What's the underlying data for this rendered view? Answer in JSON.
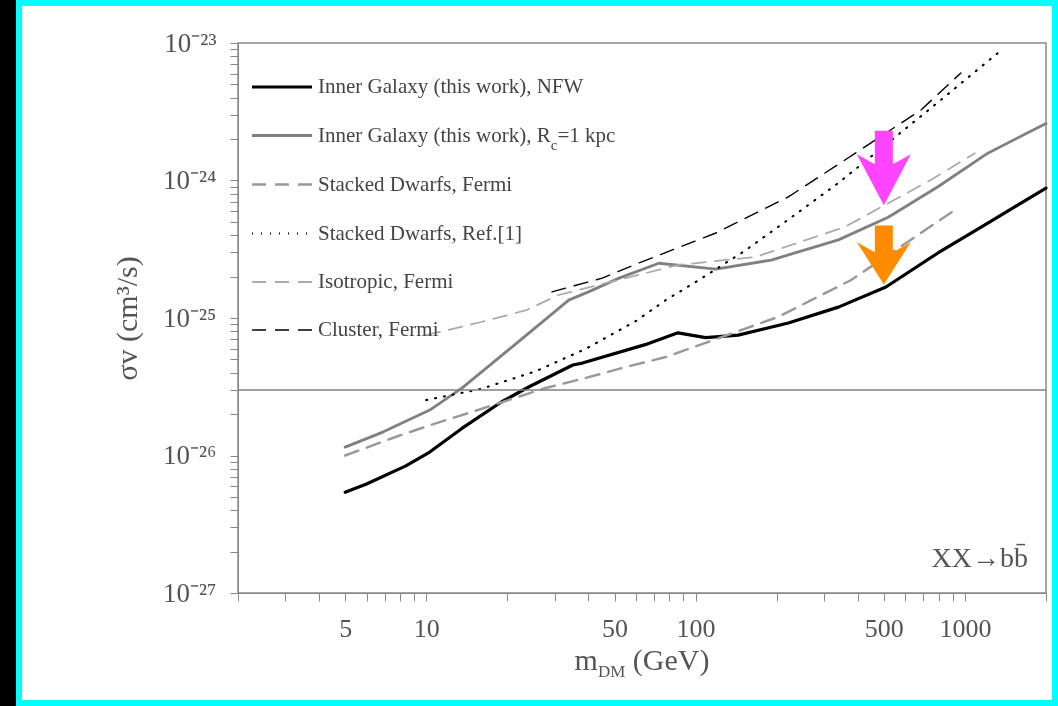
{
  "chart_data": {
    "type": "line",
    "xlabel": "m$_{DM}$ (GeV)",
    "ylabel": "σv (cm³/s)",
    "log": "xy",
    "grid": false,
    "legend": "top left",
    "marker": "none",
    "xlim": [
      2,
      2000
    ],
    "ylim": [
      1e-27,
      1e-23
    ],
    "xticks": [
      {
        "value": 2,
        "label": null
      },
      {
        "value": 3,
        "label": null
      },
      {
        "value": 4,
        "label": null
      },
      5,
      {
        "value": 6,
        "label": null
      },
      {
        "value": 7,
        "label": null
      },
      {
        "value": 8,
        "label": null
      },
      {
        "value": 9,
        "label": null
      },
      10,
      {
        "value": 20,
        "label": null
      },
      {
        "value": 30,
        "label": null
      },
      {
        "value": 40,
        "label": null
      },
      50,
      {
        "value": 60,
        "label": null
      },
      {
        "value": 70,
        "label": null
      },
      {
        "value": 80,
        "label": null
      },
      {
        "value": 90,
        "label": null
      },
      100,
      {
        "value": 200,
        "label": null
      },
      {
        "value": 300,
        "label": null
      },
      {
        "value": 400,
        "label": null
      },
      500,
      {
        "value": 600,
        "label": null
      },
      {
        "value": 700,
        "label": null
      },
      {
        "value": 800,
        "label": null
      },
      {
        "value": 900,
        "label": null
      },
      1000,
      {
        "value": 2000,
        "label": null
      }
    ],
    "yticks": [
      {
        "value": 1e-27,
        "label": "10⁻²⁷"
      },
      {
        "value": 2e-27,
        "label": null
      },
      {
        "value": 3e-27,
        "label": null
      },
      {
        "value": 4e-27,
        "label": null
      },
      {
        "value": 5e-27,
        "label": null
      },
      {
        "value": 6e-27,
        "label": null
      },
      {
        "value": 7e-27,
        "label": null
      },
      {
        "value": 8e-27,
        "label": null
      },
      {
        "value": 9e-27,
        "label": null
      },
      {
        "value": 1e-26,
        "label": "10⁻²⁶"
      },
      {
        "value": 2e-26,
        "label": null
      },
      {
        "value": 3e-26,
        "label": null
      },
      {
        "value": 4e-26,
        "label": null
      },
      {
        "value": 5e-26,
        "label": null
      },
      {
        "value": 6e-26,
        "label": null
      },
      {
        "value": 7e-26,
        "label": null
      },
      {
        "value": 8e-26,
        "label": null
      },
      {
        "value": 9e-26,
        "label": null
      },
      {
        "value": 1e-25,
        "label": "10⁻²⁵"
      },
      {
        "value": 2e-25,
        "label": null
      },
      {
        "value": 3e-25,
        "label": null
      },
      {
        "value": 4e-25,
        "label": null
      },
      {
        "value": 5e-25,
        "label": null
      },
      {
        "value": 6e-25,
        "label": null
      },
      {
        "value": 7e-25,
        "label": null
      },
      {
        "value": 8e-25,
        "label": null
      },
      {
        "value": 9e-25,
        "label": null
      },
      {
        "value": 1e-24,
        "label": "10⁻²⁴"
      },
      {
        "value": 2e-24,
        "label": null
      },
      {
        "value": 3e-24,
        "label": null
      },
      {
        "value": 4e-24,
        "label": null
      },
      {
        "value": 5e-24,
        "label": null
      },
      {
        "value": 6e-24,
        "label": null
      },
      {
        "value": 7e-24,
        "label": null
      },
      {
        "value": 8e-24,
        "label": null
      },
      {
        "value": 9e-24,
        "label": null
      },
      {
        "value": 1e-23,
        "label": "10⁻²³"
      }
    ],
    "ref_lines": [
      {
        "axis": "y",
        "value": 3e-26,
        "color": "#808080"
      }
    ],
    "annotations": [
      "XX→bb̄"
    ],
    "series": [
      {
        "name": "Inner Galaxy (this work), NFW",
        "color": "#000000",
        "line_style": "solid",
        "x": [
          5,
          6,
          8.4,
          10.3,
          13.6,
          19,
          24,
          35,
          38,
          65,
          86,
          109,
          144,
          221,
          339,
          509,
          794,
          1216,
          2000
        ],
        "values": [
          5.4e-27,
          6.2e-27,
          8.4e-27,
          1.06e-26,
          1.58e-26,
          2.45e-26,
          3.15e-26,
          4.55e-26,
          4.7e-26,
          6.4e-26,
          7.8e-26,
          7.2e-26,
          7.5e-26,
          9.2e-26,
          1.2e-25,
          1.68e-25,
          2.97e-25,
          4.9e-25,
          8.8e-25
        ]
      },
      {
        "name": "Inner Galaxy (this work), R$_{c}$=1 kpc",
        "color": "#808080",
        "line_style": "solid",
        "x": [
          5,
          6.9,
          10.3,
          13.6,
          20.8,
          33.8,
          40,
          52,
          73,
          119,
          191,
          339,
          519,
          794,
          1216,
          2000
        ],
        "values": [
          1.15e-26,
          1.48e-26,
          2.14e-26,
          3.1e-26,
          6.15e-26,
          1.35e-25,
          1.55e-25,
          1.95e-25,
          2.5e-25,
          2.27e-25,
          2.64e-25,
          3.7e-25,
          5.4e-25,
          9e-25,
          1.58e-24,
          2.6e-24
        ]
      },
      {
        "name": "Stacked Dwarfs, Fermi",
        "color": "#999999",
        "line_style": "dashed",
        "x": [
          5,
          7.5,
          10.4,
          14.4,
          27.8,
          39,
          55,
          77.5,
          109,
          203,
          378,
          918
        ],
        "values": [
          1e-26,
          1.34e-26,
          1.67e-26,
          2.04e-26,
          3.1e-26,
          3.66e-26,
          4.4e-26,
          5.2e-26,
          6.6e-26,
          1.02e-25,
          1.89e-25,
          6.1e-25
        ]
      },
      {
        "name": "Stacked Dwarfs, Ref.[1]",
        "color": "#000000",
        "line_style": "dotted",
        "x": [
          10,
          16,
          25.5,
          39,
          60,
          77.5,
          103,
          153,
          227,
          339,
          551,
          794,
          1146,
          1330
        ],
        "values": [
          2.53e-26,
          3.05e-26,
          4.1e-26,
          5.95e-26,
          9.5e-26,
          1.35e-25,
          1.89e-25,
          3.1e-25,
          5.4e-25,
          9.6e-25,
          2.07e-24,
          3.7e-24,
          6.7e-24,
          8.5e-24
        ]
      },
      {
        "name": "Isotropic, Fermi",
        "color": "#aaaaaa",
        "line_style": "dashed",
        "x": [
          10,
          16,
          23.5,
          31,
          86,
          167,
          359,
          748,
          1089
        ],
        "values": [
          7.5e-26,
          9.35e-26,
          1.14e-25,
          1.47e-25,
          2.43e-25,
          2.78e-25,
          4.6e-25,
          1.01e-24,
          1.58e-24
        ]
      },
      {
        "name": "Cluster, Fermi",
        "color": "#000000",
        "line_style": "dashed",
        "x": [
          29.3,
          45,
          61.5,
          119,
          221,
          392,
          687,
          966
        ],
        "values": [
          1.55e-25,
          1.95e-25,
          2.51e-25,
          4.15e-25,
          7.6e-25,
          1.58e-24,
          3.26e-24,
          6.05e-24
        ]
      }
    ]
  }
}
